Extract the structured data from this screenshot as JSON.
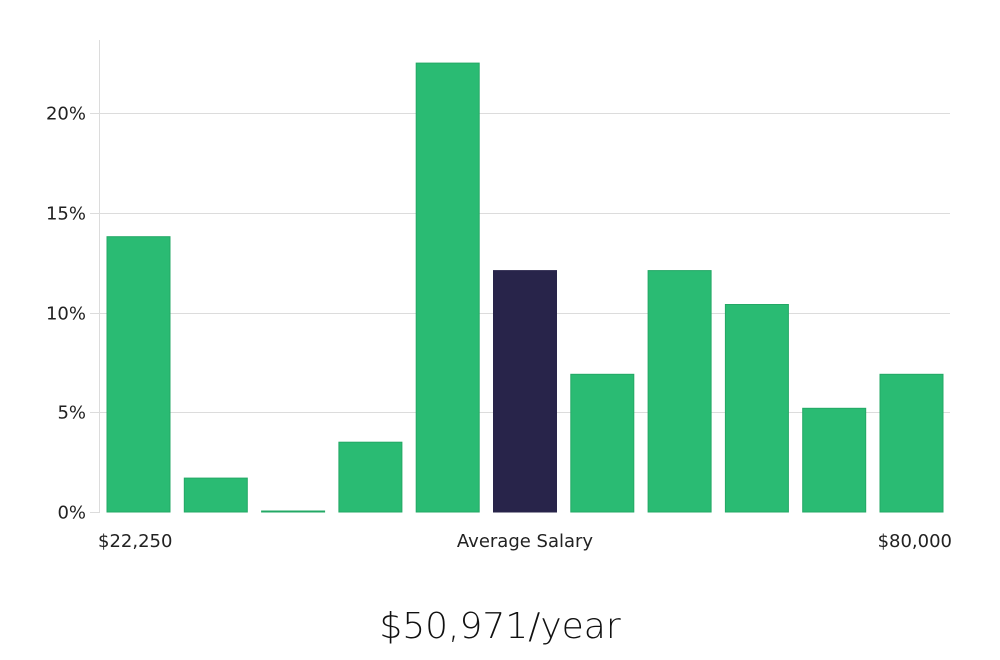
{
  "colors": {
    "bar": "#2abb73",
    "bar_stroke": "#23a865",
    "highlight": "#28244a"
  },
  "chart_data": {
    "type": "bar",
    "title": "",
    "xlabel": "Average Salary",
    "ylabel": "",
    "ylim": [
      0,
      23.7
    ],
    "y_ticks": [
      0,
      5,
      10,
      15,
      20
    ],
    "y_tick_labels": [
      "0%",
      "5%",
      "10%",
      "15%",
      "20%"
    ],
    "x_min_label": "$22,250",
    "x_max_label": "$80,000",
    "values": [
      13.8,
      1.7,
      0.05,
      3.5,
      22.5,
      12.1,
      6.9,
      12.1,
      10.4,
      5.2,
      6.9
    ],
    "highlight_index": 5,
    "grid": true
  },
  "summary": {
    "average_salary": "$50,971/year"
  }
}
